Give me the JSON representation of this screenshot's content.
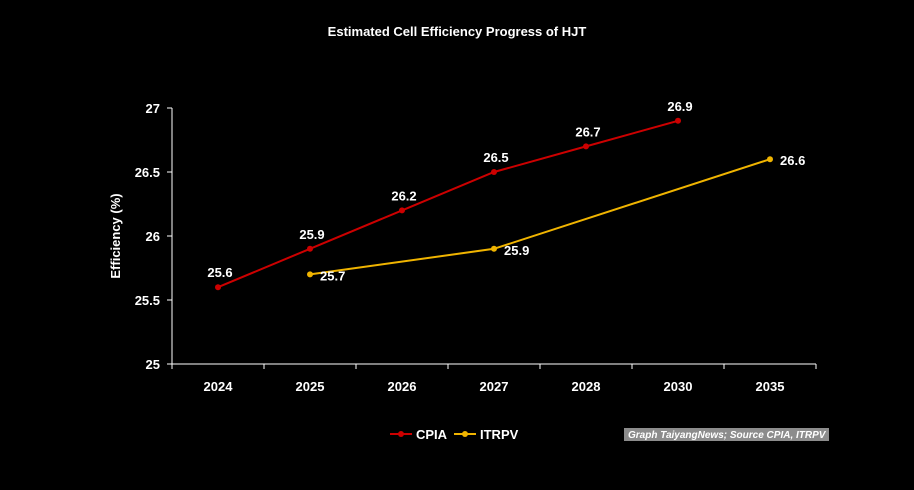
{
  "chart_data": {
    "type": "line",
    "title": "Estimated Cell Efficiency Progress of HJT",
    "xlabel": "",
    "ylabel": "Efficiency (%)",
    "categories": [
      "2024",
      "2025",
      "2026",
      "2027",
      "2028",
      "2030",
      "2035"
    ],
    "ylim": [
      25,
      27
    ],
    "yticks": [
      25,
      25.5,
      26,
      26.5,
      27
    ],
    "grid": false,
    "legend_position": "bottom",
    "series": [
      {
        "name": "CPIA",
        "color": "#cc0000",
        "values": [
          25.6,
          25.9,
          26.2,
          26.5,
          26.7,
          26.9,
          null
        ],
        "labels": [
          "25.6",
          "25.9",
          "26.2",
          "26.5",
          "26.7",
          "26.9",
          null
        ]
      },
      {
        "name": "ITRPV",
        "color": "#f0b400",
        "values": [
          null,
          25.7,
          null,
          25.9,
          null,
          null,
          26.6
        ],
        "labels": [
          null,
          "25.7",
          null,
          "25.9",
          null,
          null,
          "26.6"
        ]
      }
    ],
    "source_note": "Graph TaiyangNews; Source CPIA, ITRPV"
  }
}
